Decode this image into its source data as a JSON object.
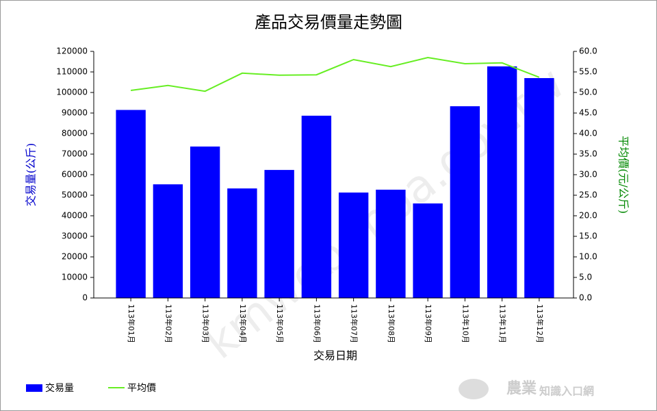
{
  "chart_data": {
    "type": "bar",
    "title": "產品交易價量走勢圖",
    "x_label": "交易日期",
    "y_label": "交易量(公斤)",
    "y2_label": "平均價(元/公斤)",
    "categories": [
      "113年01月",
      "113年02月",
      "113年03月",
      "113年04月",
      "113年05月",
      "113年06月",
      "113年07月",
      "113年08月",
      "113年09月",
      "113年10月",
      "113年11月",
      "113年12月"
    ],
    "series": [
      {
        "name": "交易量",
        "type": "bar",
        "color": "#0000ff",
        "values": [
          91500,
          55300,
          73700,
          53300,
          62300,
          88700,
          51300,
          52700,
          46000,
          93300,
          112700,
          107000
        ]
      },
      {
        "name": "平均價",
        "type": "line",
        "axis": "y2",
        "color": "#66ee22",
        "values": [
          50.5,
          51.7,
          50.3,
          54.7,
          54.2,
          54.3,
          58.0,
          56.3,
          58.5,
          57.0,
          57.2,
          53.7
        ]
      }
    ],
    "ylim": [
      0,
      120000
    ],
    "yticks": [
      0,
      10000,
      20000,
      30000,
      40000,
      50000,
      60000,
      70000,
      80000,
      90000,
      100000,
      110000,
      120000
    ],
    "y2lim": [
      0,
      60
    ],
    "y2ticks": [
      {
        "value": 0,
        "label": "0.0"
      },
      {
        "value": 5,
        "label": "5.0"
      },
      {
        "value": 10,
        "label": "10.0"
      },
      {
        "value": 15,
        "label": "15.0"
      },
      {
        "value": 20,
        "label": "20.0"
      },
      {
        "value": 25,
        "label": "25.0"
      },
      {
        "value": 30,
        "label": "30.0"
      },
      {
        "value": 35,
        "label": "35.0"
      },
      {
        "value": 40,
        "label": "40.0"
      },
      {
        "value": 45,
        "label": "45.0"
      },
      {
        "value": 50,
        "label": "50.0"
      },
      {
        "value": 55,
        "label": "55.0"
      },
      {
        "value": 60,
        "label": "60.0"
      }
    ],
    "legend": "bottom-left"
  },
  "watermark": "kmweb.moa.gov.tw",
  "logo": {
    "main": "農業",
    "sub": "知識入口網"
  }
}
